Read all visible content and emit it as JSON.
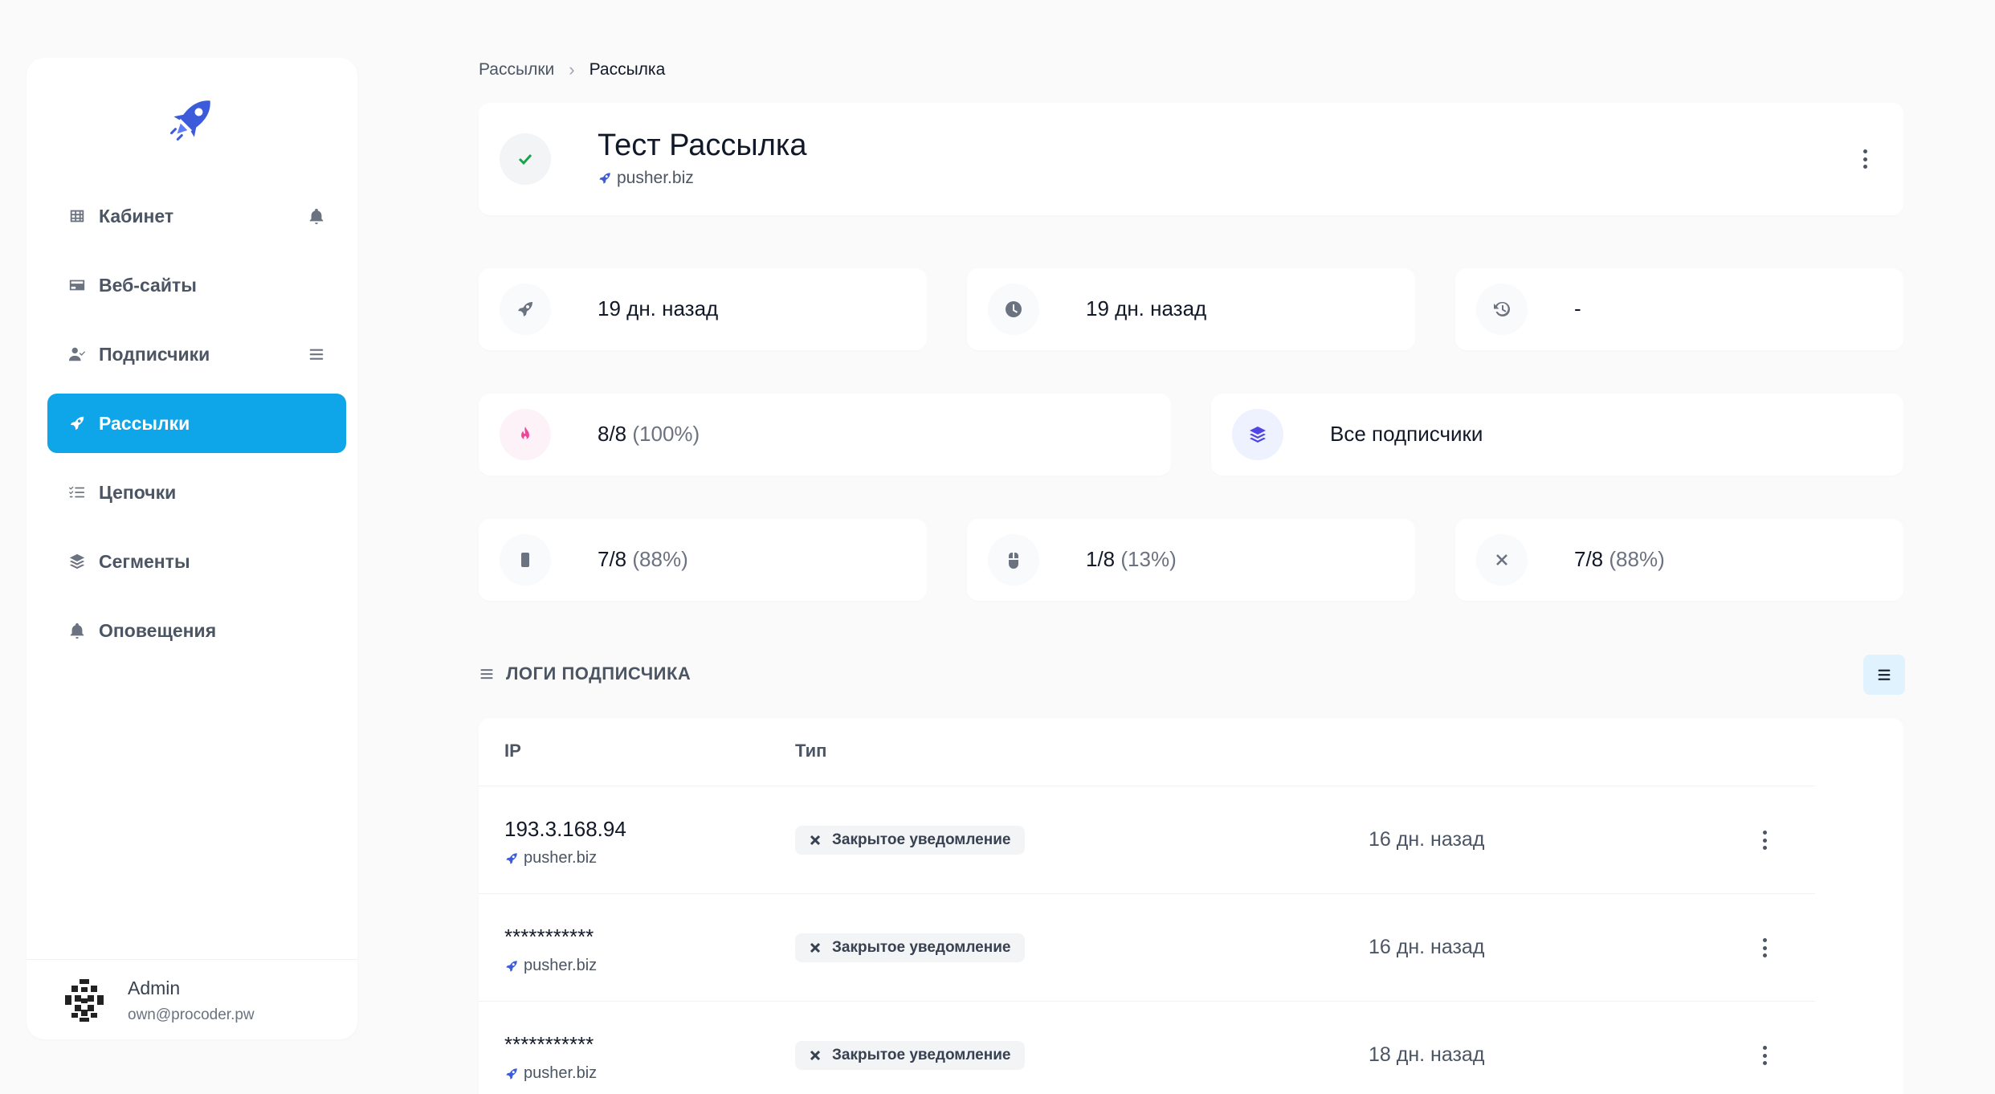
{
  "sidebar": {
    "items": [
      {
        "label": "Кабинет",
        "icon": "table-icon"
      },
      {
        "label": "Веб-сайты",
        "icon": "card-icon"
      },
      {
        "label": "Подписчики",
        "icon": "user-check-icon"
      },
      {
        "label": "Рассылки",
        "icon": "rocket-icon"
      },
      {
        "label": "Цепочки",
        "icon": "checklist-icon"
      },
      {
        "label": "Сегменты",
        "icon": "layers-icon"
      },
      {
        "label": "Оповещения",
        "icon": "bell-icon"
      }
    ],
    "user": {
      "name": "Admin",
      "email": "own@procoder.pw"
    }
  },
  "breadcrumb": {
    "parent": "Рассылки",
    "current": "Рассылка"
  },
  "header": {
    "title": "Тест Рассылка",
    "site": "pusher.biz"
  },
  "stats": {
    "sent": "19 дн. назад",
    "scheduled": "19 дн. назад",
    "history": "-",
    "delivered": "8/8",
    "delivered_pct": "(100%)",
    "segment": "Все подписчики",
    "shown": "7/8",
    "shown_pct": "(88%)",
    "clicked": "1/8",
    "clicked_pct": "(13%)",
    "closed": "7/8",
    "closed_pct": "(88%)"
  },
  "logs": {
    "title": "ЛОГИ ПОДПИСЧИКА",
    "columns": {
      "ip": "IP",
      "type": "Тип"
    },
    "rows": [
      {
        "ip": "193.3.168.94",
        "site": "pusher.biz",
        "type": "Закрытое уведомление",
        "time": "16 дн. назад"
      },
      {
        "ip": "***********",
        "site": "pusher.biz",
        "type": "Закрытое уведомление",
        "time": "16 дн. назад"
      },
      {
        "ip": "***********",
        "site": "pusher.biz",
        "type": "Закрытое уведомление",
        "time": "18 дн. назад"
      }
    ]
  },
  "colors": {
    "accent": "#0ea5e9",
    "success": "#16a34a",
    "pink": "#ec4899",
    "indigo": "#4f46e5"
  }
}
